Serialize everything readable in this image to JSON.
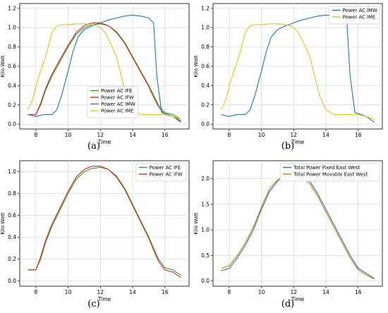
{
  "figure": {
    "sublabels": [
      "(a)",
      "(b)",
      "(c)",
      "(d)"
    ]
  },
  "chart_data": [
    {
      "type": "line",
      "panel": "a",
      "xlabel": "Time",
      "ylabel": "Kilo Watt",
      "xlim": [
        7.0,
        17.5
      ],
      "ylim": [
        -0.05,
        1.25
      ],
      "xticks": [
        8,
        10,
        12,
        14,
        16
      ],
      "yticks": [
        0.0,
        0.2,
        0.4,
        0.6,
        0.8,
        1.0,
        1.2
      ],
      "ytick_labels": [
        "0.0",
        "0.2",
        "0.4",
        "0.6",
        "0.8",
        "1.0",
        "1.2"
      ],
      "legend": "lower-center",
      "series": [
        {
          "name": "Power AC IFE",
          "color": "#2ca02c",
          "x": [
            7.5,
            8.0,
            8.3,
            8.6,
            9.0,
            9.5,
            10.0,
            10.5,
            11.0,
            11.3,
            11.5,
            12.0,
            12.5,
            13.0,
            13.5,
            14.0,
            14.5,
            15.0,
            15.3,
            15.6,
            16.0,
            16.5,
            17.0
          ],
          "y": [
            0.1,
            0.1,
            0.2,
            0.35,
            0.5,
            0.65,
            0.8,
            0.93,
            1.0,
            1.02,
            1.03,
            1.04,
            1.02,
            0.96,
            0.85,
            0.7,
            0.55,
            0.4,
            0.3,
            0.2,
            0.12,
            0.1,
            0.05
          ]
        },
        {
          "name": "Power AC IFW",
          "color": "#d62728",
          "x": [
            7.5,
            8.0,
            8.3,
            8.6,
            9.0,
            9.5,
            10.0,
            10.5,
            11.0,
            11.3,
            11.5,
            12.0,
            12.5,
            13.0,
            13.5,
            14.0,
            14.5,
            15.0,
            15.3,
            15.6,
            16.0,
            16.5,
            17.0
          ],
          "y": [
            0.1,
            0.1,
            0.22,
            0.37,
            0.52,
            0.67,
            0.82,
            0.95,
            1.02,
            1.04,
            1.05,
            1.05,
            1.02,
            0.95,
            0.84,
            0.69,
            0.54,
            0.39,
            0.28,
            0.18,
            0.1,
            0.08,
            0.03
          ]
        },
        {
          "name": "Power AC IMW",
          "color": "#1f77b4",
          "x": [
            7.5,
            8.0,
            8.5,
            9.0,
            9.3,
            9.6,
            10.0,
            10.3,
            10.6,
            11.0,
            11.5,
            12.0,
            12.5,
            13.0,
            13.5,
            14.0,
            14.5,
            15.0,
            15.3,
            15.5,
            15.8,
            16.2,
            16.5,
            17.0
          ],
          "y": [
            0.1,
            0.08,
            0.1,
            0.1,
            0.15,
            0.3,
            0.55,
            0.75,
            0.9,
            0.98,
            1.02,
            1.05,
            1.08,
            1.1,
            1.12,
            1.13,
            1.12,
            1.1,
            1.05,
            0.5,
            0.12,
            0.1,
            0.08,
            0.02
          ]
        },
        {
          "name": "Power AC IME",
          "color": "#e8c21a",
          "x": [
            7.5,
            7.8,
            8.0,
            8.3,
            8.6,
            9.0,
            9.3,
            9.6,
            10.0,
            10.5,
            11.0,
            11.5,
            11.8,
            12.0,
            12.3,
            12.6,
            13.0,
            13.3,
            13.6,
            14.0,
            14.5,
            15.0,
            15.5,
            16.0,
            16.5,
            17.0
          ],
          "y": [
            0.15,
            0.25,
            0.4,
            0.55,
            0.7,
            0.95,
            1.02,
            1.03,
            1.03,
            1.04,
            1.04,
            1.03,
            1.02,
            1.0,
            0.95,
            0.85,
            0.7,
            0.5,
            0.3,
            0.15,
            0.1,
            0.1,
            0.1,
            0.1,
            0.08,
            0.05
          ]
        }
      ]
    },
    {
      "type": "line",
      "panel": "b",
      "xlabel": "Time",
      "ylabel": "Kilo Watt",
      "xlim": [
        7.0,
        17.5
      ],
      "ylim": [
        -0.05,
        1.25
      ],
      "xticks": [
        8,
        10,
        12,
        14,
        16
      ],
      "yticks": [
        0.0,
        0.2,
        0.4,
        0.6,
        0.8,
        1.0,
        1.2
      ],
      "ytick_labels": [
        "0.0",
        "0.2",
        "0.4",
        "0.6",
        "0.8",
        "1.0",
        "1.2"
      ],
      "legend": "upper-right",
      "series": [
        {
          "name": "Power AC IMW",
          "color": "#1f77b4",
          "x": [
            7.5,
            8.0,
            8.5,
            9.0,
            9.3,
            9.6,
            10.0,
            10.3,
            10.6,
            11.0,
            11.5,
            12.0,
            12.5,
            13.0,
            13.5,
            14.0,
            14.5,
            15.0,
            15.3,
            15.5,
            15.8,
            16.2,
            16.5,
            17.0
          ],
          "y": [
            0.1,
            0.08,
            0.1,
            0.1,
            0.15,
            0.3,
            0.55,
            0.75,
            0.9,
            0.98,
            1.02,
            1.05,
            1.08,
            1.1,
            1.12,
            1.13,
            1.12,
            1.1,
            1.05,
            0.5,
            0.12,
            0.1,
            0.08,
            0.02
          ]
        },
        {
          "name": "Power AC IME",
          "color": "#e8c21a",
          "x": [
            7.5,
            7.8,
            8.0,
            8.3,
            8.6,
            9.0,
            9.3,
            9.6,
            10.0,
            10.5,
            11.0,
            11.5,
            11.8,
            12.0,
            12.3,
            12.6,
            13.0,
            13.3,
            13.6,
            14.0,
            14.5,
            15.0,
            15.5,
            16.0,
            16.5,
            17.0
          ],
          "y": [
            0.15,
            0.25,
            0.4,
            0.55,
            0.7,
            0.95,
            1.02,
            1.03,
            1.03,
            1.04,
            1.04,
            1.03,
            1.02,
            1.0,
            0.95,
            0.85,
            0.7,
            0.5,
            0.3,
            0.15,
            0.1,
            0.1,
            0.1,
            0.1,
            0.08,
            0.05
          ]
        }
      ]
    },
    {
      "type": "line",
      "panel": "c",
      "xlabel": "Time",
      "ylabel": "Kilo Watt",
      "xlim": [
        7.0,
        17.5
      ],
      "ylim": [
        -0.05,
        1.1
      ],
      "xticks": [
        8,
        10,
        12,
        14,
        16
      ],
      "yticks": [
        0.0,
        0.2,
        0.4,
        0.6,
        0.8,
        1.0
      ],
      "ytick_labels": [
        "0.0",
        "0.2",
        "0.4",
        "0.6",
        "0.8",
        "1.0"
      ],
      "legend": "upper-right",
      "series": [
        {
          "name": "Power AC IFE",
          "color": "#2ca02c",
          "x": [
            7.5,
            8.0,
            8.3,
            8.6,
            9.0,
            9.5,
            10.0,
            10.5,
            11.0,
            11.3,
            11.5,
            12.0,
            12.5,
            13.0,
            13.5,
            14.0,
            14.5,
            15.0,
            15.3,
            15.6,
            16.0,
            16.5,
            17.0
          ],
          "y": [
            0.1,
            0.1,
            0.2,
            0.35,
            0.5,
            0.65,
            0.8,
            0.93,
            1.0,
            1.02,
            1.03,
            1.04,
            1.02,
            0.96,
            0.85,
            0.7,
            0.55,
            0.4,
            0.3,
            0.2,
            0.12,
            0.1,
            0.05
          ]
        },
        {
          "name": "Power AC IFW",
          "color": "#d62728",
          "x": [
            7.5,
            8.0,
            8.3,
            8.6,
            9.0,
            9.5,
            10.0,
            10.5,
            11.0,
            11.3,
            11.5,
            12.0,
            12.5,
            13.0,
            13.5,
            14.0,
            14.5,
            15.0,
            15.3,
            15.6,
            16.0,
            16.5,
            17.0
          ],
          "y": [
            0.1,
            0.1,
            0.22,
            0.37,
            0.52,
            0.67,
            0.82,
            0.95,
            1.02,
            1.04,
            1.05,
            1.05,
            1.02,
            0.95,
            0.84,
            0.69,
            0.54,
            0.39,
            0.28,
            0.18,
            0.1,
            0.08,
            0.03
          ]
        }
      ]
    },
    {
      "type": "line",
      "panel": "d",
      "xlabel": "Time",
      "ylabel": "Kilo Watt",
      "xlim": [
        7.0,
        17.5
      ],
      "ylim": [
        -0.1,
        2.35
      ],
      "xticks": [
        8,
        10,
        12,
        14,
        16
      ],
      "yticks": [
        0.0,
        0.5,
        1.0,
        1.5,
        2.0
      ],
      "ytick_labels": [
        "0.0",
        "0.5",
        "1.0",
        "1.5",
        "2.0"
      ],
      "legend": "upper-right",
      "series": [
        {
          "name": "Total Power Fixed East West",
          "color": "#1f77b4",
          "x": [
            7.5,
            8.0,
            8.5,
            9.0,
            9.5,
            10.0,
            10.5,
            11.0,
            11.5,
            12.0,
            12.5,
            13.0,
            13.5,
            14.0,
            14.5,
            15.0,
            15.5,
            16.0,
            16.5,
            17.0
          ],
          "y": [
            0.2,
            0.25,
            0.45,
            0.7,
            1.0,
            1.4,
            1.75,
            1.95,
            2.05,
            2.1,
            2.05,
            1.95,
            1.7,
            1.4,
            1.1,
            0.8,
            0.5,
            0.25,
            0.15,
            0.05
          ]
        },
        {
          "name": "Total Power Movable East West",
          "color": "#e07b1a",
          "x": [
            7.5,
            8.0,
            8.5,
            9.0,
            9.5,
            10.0,
            10.5,
            11.0,
            11.5,
            12.0,
            12.5,
            13.0,
            13.5,
            14.0,
            14.5,
            15.0,
            15.5,
            16.0,
            16.5,
            17.0
          ],
          "y": [
            0.25,
            0.3,
            0.5,
            0.75,
            1.05,
            1.45,
            1.8,
            1.98,
            2.07,
            2.1,
            2.03,
            1.9,
            1.65,
            1.35,
            1.05,
            0.75,
            0.45,
            0.22,
            0.12,
            0.04
          ]
        }
      ]
    }
  ]
}
